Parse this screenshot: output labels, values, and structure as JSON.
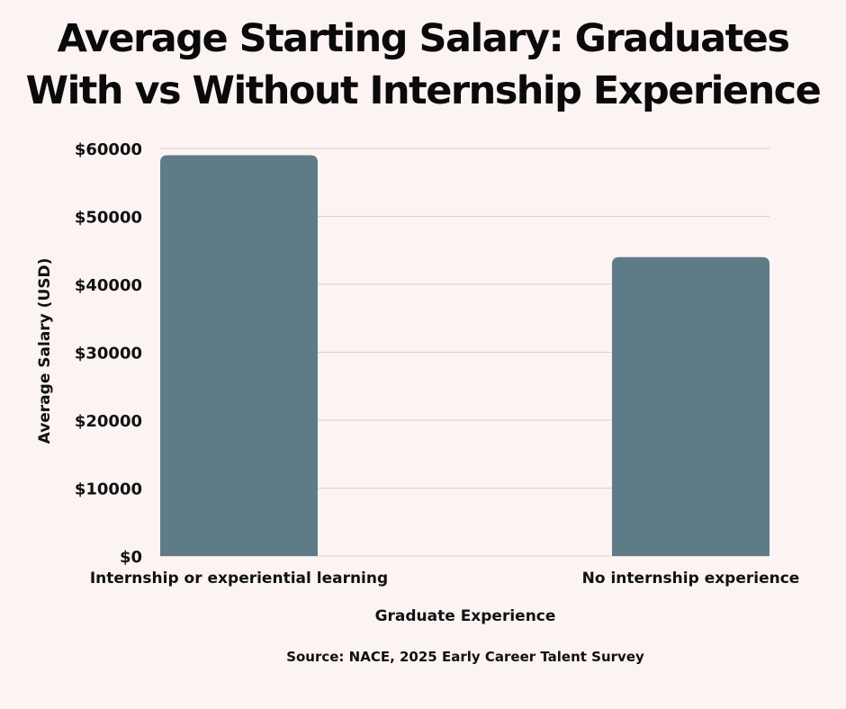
{
  "chart_data": {
    "type": "bar",
    "title_lines": [
      "Average Starting Salary: Graduates",
      "With vs Without Internship Experience"
    ],
    "categories": [
      "Internship or experiential learning",
      "No internship experience"
    ],
    "values": [
      59000,
      44000
    ],
    "xlabel": "Graduate Experience",
    "ylabel": "Average Salary (USD)",
    "ylim": [
      0,
      60000
    ],
    "yticks": [
      0,
      10000,
      20000,
      30000,
      40000,
      50000,
      60000
    ],
    "ytick_labels": [
      "$0",
      "$10000",
      "$20000",
      "$30000",
      "$40000",
      "$50000",
      "$60000"
    ],
    "grid": true,
    "legend": "none",
    "bar_color": "#607b88",
    "grid_color": "#d9d2d2",
    "background": "#fcf3f3"
  },
  "source": "Source: NACE, 2025 Early Career Talent Survey"
}
